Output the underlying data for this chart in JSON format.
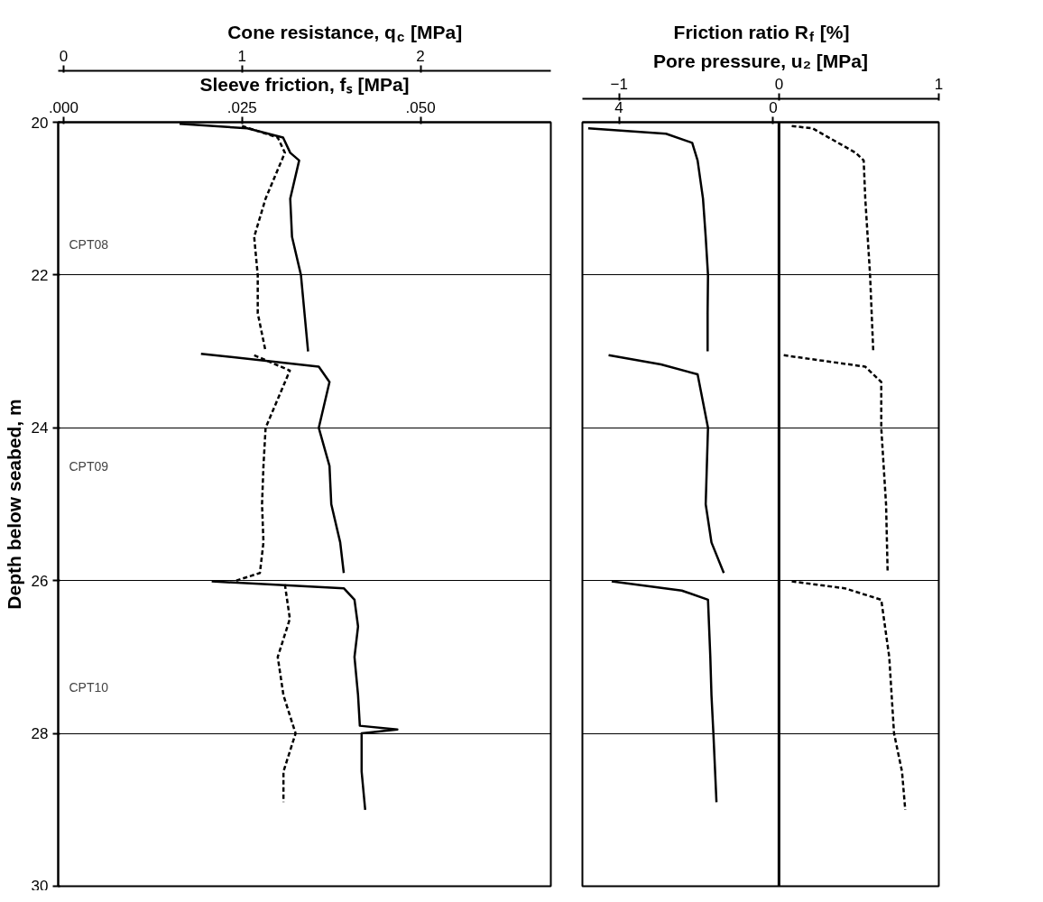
{
  "chart_data": [
    {
      "type": "line",
      "orientation": "horizontal",
      "xlabel": "Cone resistance, q$_{c}$ [MPa]",
      "x2label": "Sleeve friction, fₛ [MPa]",
      "ylabel": "Depth below seabed, m",
      "xlim": [
        -0.03,
        2.73
      ],
      "xticks": [
        0,
        1,
        2
      ],
      "x2lim": [
        -0.00075,
        0.06825
      ],
      "x2ticks": [
        {
          "value": 0,
          "label": ".000"
        },
        {
          "value": 0.025,
          "label": ".025"
        },
        {
          "value": 0.05,
          "label": ".050"
        }
      ],
      "ylim": [
        30,
        20
      ],
      "yticks": [
        20,
        22,
        24,
        26,
        28,
        30
      ],
      "grid": "y",
      "annotations": [
        "CPT08",
        "CPT09",
        "CPT10"
      ],
      "series": [
        {
          "color": "#000000",
          "line_style": "solid",
          "x": [
            20.02,
            20.08,
            20.2,
            20.4,
            20.5,
            21,
            21.5,
            22,
            22.5,
            23,
            23.02,
            23.03,
            23.2,
            23.4,
            24,
            24.5,
            25,
            25.5,
            25.9,
            25.95,
            26.01,
            26.1,
            26.25,
            26.6,
            27,
            27.5,
            27.9,
            27.95,
            28,
            28.5,
            29
          ],
          "values": [
            0.65,
            1.03,
            1.23,
            1.27,
            1.32,
            1.27,
            1.28,
            1.33,
            1.35,
            1.37,
            null,
            0.77,
            1.43,
            1.49,
            1.43,
            1.49,
            1.5,
            1.55,
            1.57,
            null,
            0.83,
            1.57,
            1.63,
            1.65,
            1.63,
            1.65,
            1.66,
            1.87,
            1.67,
            1.67,
            1.69
          ]
        },
        {
          "color": "#000000",
          "line_style": "dashed",
          "axis": "x2",
          "x": [
            20.05,
            20.2,
            20.4,
            21,
            21.5,
            22,
            22.5,
            23,
            23.02,
            23.05,
            23.25,
            24,
            24.5,
            25,
            25.5,
            25.9,
            26,
            26.02,
            26.05,
            26.5,
            27,
            27.5,
            28,
            28.5,
            28.9
          ],
          "values": [
            0.025,
            0.03,
            0.031,
            0.0283,
            0.0267,
            0.0272,
            0.0272,
            0.0283,
            null,
            0.0267,
            0.0317,
            0.0283,
            0.028,
            0.0278,
            0.028,
            0.0275,
            0.0242,
            null,
            0.031,
            0.0317,
            0.03,
            0.0308,
            0.0325,
            0.0308,
            0.0308
          ]
        }
      ]
    },
    {
      "type": "line",
      "orientation": "horizontal",
      "xlabel": "Pore pressure, u₂ [MPa]",
      "x2label": "Friction ratio R$_{f}$ [%]",
      "xlim": [
        -1.23,
        1
      ],
      "xticks": [
        -1,
        0,
        1
      ],
      "x2lim": [
        4.95,
        -4.3
      ],
      "x2ticks": [
        4,
        0
      ],
      "ylim": [
        30,
        20
      ],
      "yticks": [
        20,
        22,
        24,
        26,
        28,
        30
      ],
      "grid": "y",
      "tick_labels": "x",
      "ref_lines": [
        {
          "axis": "x",
          "value": 0
        }
      ],
      "series": [
        {
          "color": "#000000",
          "line_style": "solid",
          "axis": "x2",
          "x": [
            20.08,
            20.15,
            20.27,
            20.5,
            21,
            21.5,
            22,
            22.5,
            23,
            23.02,
            23.05,
            23.17,
            23.3,
            24,
            24.5,
            25,
            25.5,
            25.9,
            25.95,
            26.01,
            26.13,
            26.25,
            27,
            27.5,
            28,
            28.9
          ],
          "values": [
            4.8,
            2.78,
            2.1,
            1.96,
            1.82,
            1.75,
            1.69,
            1.7,
            1.7,
            null,
            4.27,
            2.91,
            1.96,
            1.69,
            1.72,
            1.75,
            1.6,
            1.28,
            null,
            4.19,
            2.37,
            1.69,
            1.63,
            1.6,
            1.55,
            1.47
          ]
        },
        {
          "color": "#000000",
          "line_style": "dashed",
          "x": [
            20.05,
            20.08,
            20.4,
            20.5,
            21,
            22,
            22.5,
            23,
            23.02,
            23.05,
            23.2,
            23.4,
            24,
            25,
            25.9,
            25.95,
            26.01,
            26.1,
            26.25,
            27,
            28,
            28.5,
            29
          ],
          "values": [
            0.08,
            0.21,
            0.48,
            0.53,
            0.54,
            0.57,
            0.58,
            0.59,
            null,
            0.03,
            0.54,
            0.64,
            0.64,
            0.67,
            0.68,
            null,
            0.08,
            0.41,
            0.64,
            0.69,
            0.72,
            0.77,
            0.79
          ]
        }
      ]
    }
  ]
}
